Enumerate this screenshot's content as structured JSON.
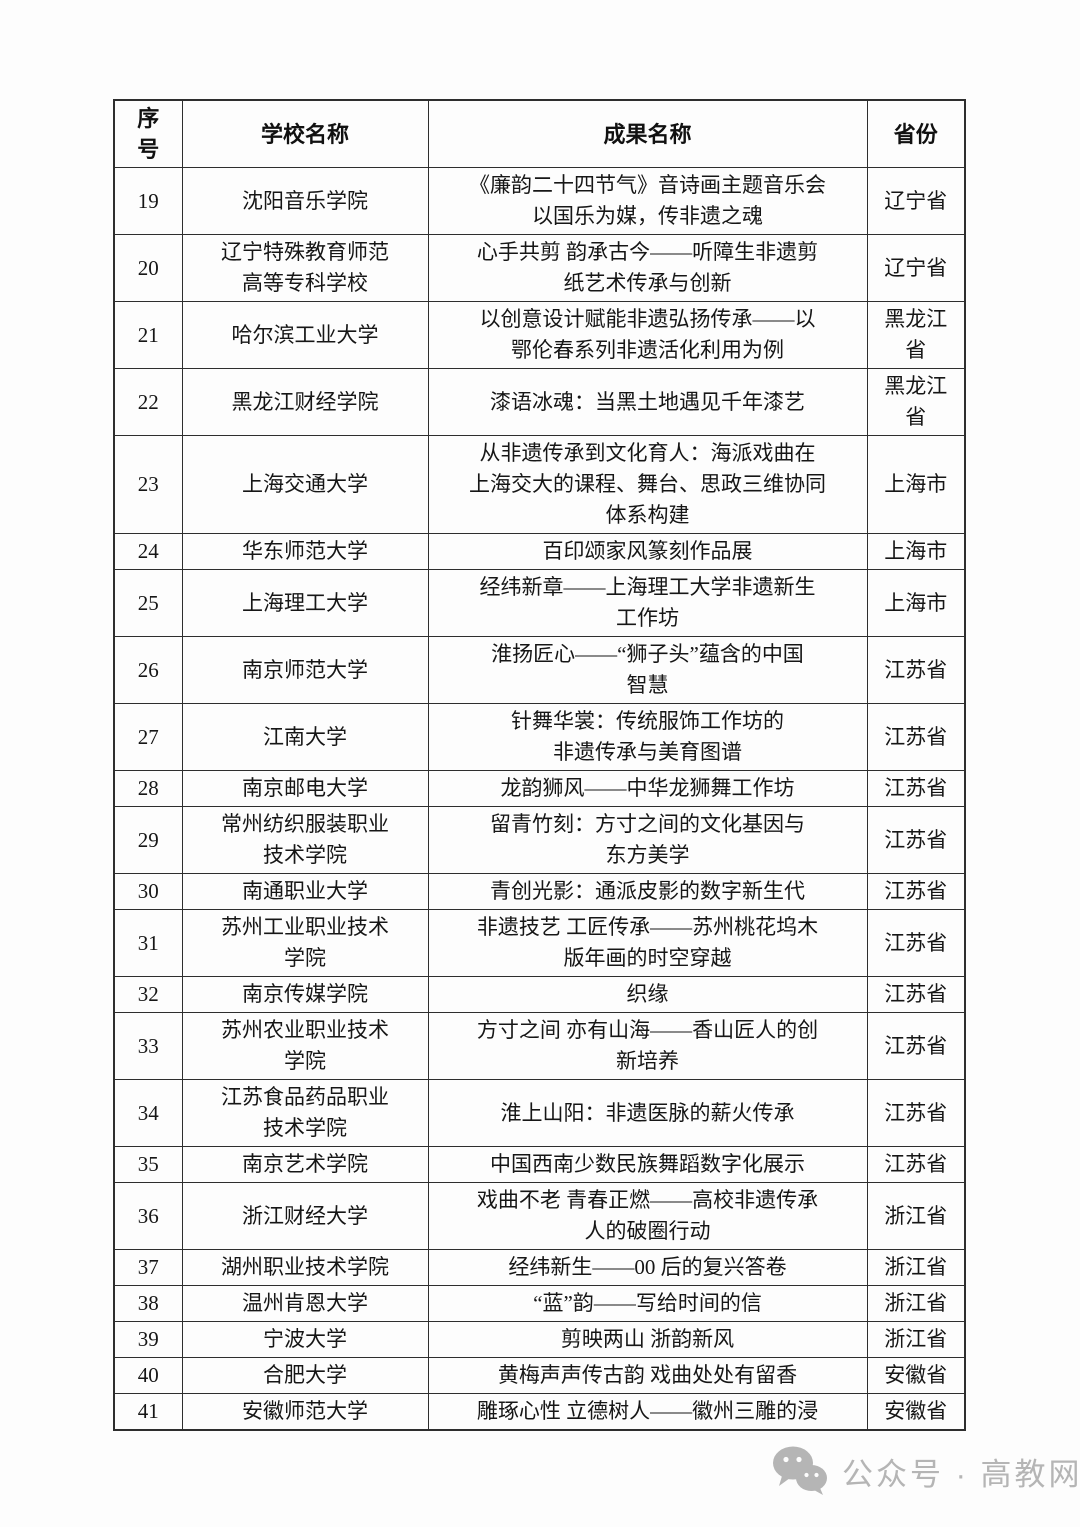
{
  "page": {
    "background": "#fdfdfd",
    "border_color": "#2e2e2e",
    "text_color": "#161616"
  },
  "table": {
    "headers": {
      "index": "序\n号",
      "school": "学校名称",
      "achievement": "成果名称",
      "province": "省份"
    },
    "rows": [
      {
        "index": "19",
        "school": "沈阳音乐学院",
        "achievement": "《廉韵二十四节气》音诗画主题音乐会\n以国乐为媒，传非遗之魂",
        "province": "辽宁省"
      },
      {
        "index": "20",
        "school": "辽宁特殊教育师范\n高等专科学校",
        "achievement": "心手共剪 韵承古今——听障生非遗剪\n纸艺术传承与创新",
        "province": "辽宁省"
      },
      {
        "index": "21",
        "school": "哈尔滨工业大学",
        "achievement": "以创意设计赋能非遗弘扬传承——以\n鄂伦春系列非遗活化利用为例",
        "province": "黑龙江\n省"
      },
      {
        "index": "22",
        "school": "黑龙江财经学院",
        "achievement": "漆语冰魂：当黑土地遇见千年漆艺",
        "province": "黑龙江\n省"
      },
      {
        "index": "23",
        "school": "上海交通大学",
        "achievement": "从非遗传承到文化育人：海派戏曲在\n上海交大的课程、舞台、思政三维协同\n体系构建",
        "province": "上海市"
      },
      {
        "index": "24",
        "school": "华东师范大学",
        "achievement": "百印颂家风篆刻作品展",
        "province": "上海市"
      },
      {
        "index": "25",
        "school": "上海理工大学",
        "achievement": "经纬新章——上海理工大学非遗新生\n工作坊",
        "province": "上海市"
      },
      {
        "index": "26",
        "school": "南京师范大学",
        "achievement": "淮扬匠心——“狮子头”蕴含的中国\n智慧",
        "province": "江苏省"
      },
      {
        "index": "27",
        "school": "江南大学",
        "achievement": "针舞华裳：传统服饰工作坊的\n非遗传承与美育图谱",
        "province": "江苏省"
      },
      {
        "index": "28",
        "school": "南京邮电大学",
        "achievement": "龙韵狮风——中华龙狮舞工作坊",
        "province": "江苏省"
      },
      {
        "index": "29",
        "school": "常州纺织服装职业\n技术学院",
        "achievement": "留青竹刻：方寸之间的文化基因与\n东方美学",
        "province": "江苏省"
      },
      {
        "index": "30",
        "school": "南通职业大学",
        "achievement": "青创光影：通派皮影的数字新生代",
        "province": "江苏省"
      },
      {
        "index": "31",
        "school": "苏州工业职业技术\n学院",
        "achievement": "非遗技艺 工匠传承——苏州桃花坞木\n版年画的时空穿越",
        "province": "江苏省"
      },
      {
        "index": "32",
        "school": "南京传媒学院",
        "achievement": "织缘",
        "province": "江苏省"
      },
      {
        "index": "33",
        "school": "苏州农业职业技术\n学院",
        "achievement": "方寸之间 亦有山海——香山匠人的创\n新培养",
        "province": "江苏省"
      },
      {
        "index": "34",
        "school": "江苏食品药品职业\n技术学院",
        "achievement": "淮上山阳：非遗医脉的薪火传承",
        "province": "江苏省"
      },
      {
        "index": "35",
        "school": "南京艺术学院",
        "achievement": "中国西南少数民族舞蹈数字化展示",
        "province": "江苏省"
      },
      {
        "index": "36",
        "school": "浙江财经大学",
        "achievement": "戏曲不老 青春正燃——高校非遗传承\n人的破圈行动",
        "province": "浙江省"
      },
      {
        "index": "37",
        "school": "湖州职业技术学院",
        "achievement": "经纬新生——00 后的复兴答卷",
        "province": "浙江省"
      },
      {
        "index": "38",
        "school": "温州肯恩大学",
        "achievement": "“蓝”韵——写给时间的信",
        "province": "浙江省"
      },
      {
        "index": "39",
        "school": "宁波大学",
        "achievement": "剪映两山 浙韵新风",
        "province": "浙江省"
      },
      {
        "index": "40",
        "school": "合肥大学",
        "achievement": "黄梅声声传古韵 戏曲处处有留香",
        "province": "安徽省"
      },
      {
        "index": "41",
        "school": "安徽师范大学",
        "achievement": "雕琢心性 立德树人——徽州三雕的浸",
        "province": "安徽省"
      }
    ]
  },
  "watermark": {
    "icon": "wechat-icon",
    "text": "公众号 · 高教网",
    "color": "#b5b5b5"
  }
}
